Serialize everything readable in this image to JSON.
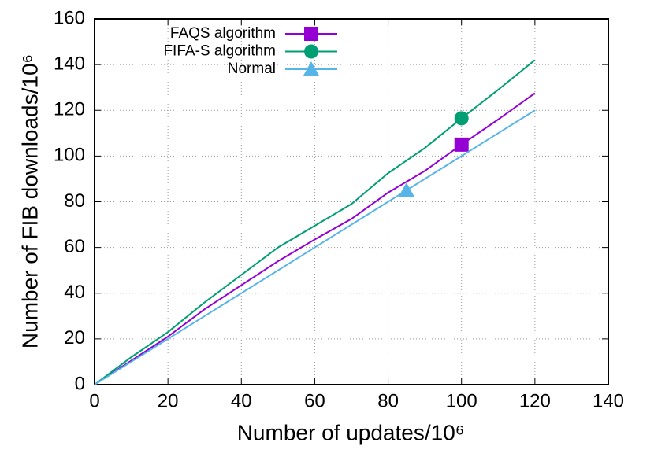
{
  "chart_data": {
    "type": "line",
    "xlabel": "Number of updates/10⁶",
    "ylabel": "Number of FIB downloads/10⁶",
    "xlim": [
      0,
      140
    ],
    "xticks": [
      0,
      20,
      40,
      60,
      80,
      100,
      120,
      140
    ],
    "ylim": [
      0,
      160
    ],
    "yticks": [
      0,
      20,
      40,
      60,
      80,
      100,
      120,
      140,
      160
    ],
    "grid": true,
    "legend": "top-left",
    "series": [
      {
        "name": "FAQS algorithm",
        "color": "#9400d3",
        "marker": "square",
        "marker_x": 100,
        "x": [
          0,
          10,
          20,
          30,
          40,
          50,
          60,
          70,
          80,
          90,
          100,
          110,
          120
        ],
        "values": [
          0,
          10.5,
          21,
          33,
          43.5,
          54,
          63.5,
          72.5,
          84,
          93.5,
          105,
          116,
          127.5
        ]
      },
      {
        "name": "FIFA-S algorithm",
        "color": "#009e73",
        "marker": "circle",
        "marker_x": 100,
        "x": [
          0,
          10,
          20,
          30,
          40,
          50,
          60,
          70,
          80,
          90,
          100,
          110,
          120
        ],
        "values": [
          0,
          12,
          23,
          36,
          48,
          60,
          69.5,
          79,
          92.5,
          103.5,
          116.5,
          129,
          142
        ]
      },
      {
        "name": "Normal",
        "color": "#56b4e9",
        "marker": "triangle",
        "marker_x": 85,
        "x": [
          0,
          85,
          120
        ],
        "values": [
          0,
          85,
          120
        ]
      }
    ]
  }
}
